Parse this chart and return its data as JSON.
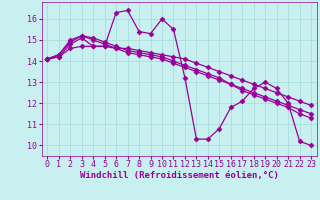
{
  "background_color": "#c8f0f0",
  "grid_color": "#aadddd",
  "line_color": "#990099",
  "marker": "D",
  "markersize": 2.5,
  "linewidth": 0.9,
  "xlim": [
    -0.5,
    23.5
  ],
  "ylim": [
    9.5,
    16.8
  ],
  "yticks": [
    10,
    11,
    12,
    13,
    14,
    15,
    16
  ],
  "xticks": [
    0,
    1,
    2,
    3,
    4,
    5,
    6,
    7,
    8,
    9,
    10,
    11,
    12,
    13,
    14,
    15,
    16,
    17,
    18,
    19,
    20,
    21,
    22,
    23
  ],
  "xlabel": "Windchill (Refroidissement éolien,°C)",
  "xlabel_fontsize": 6.5,
  "tick_fontsize": 6.0,
  "series": [
    [
      14.1,
      14.2,
      14.8,
      15.1,
      14.7,
      14.7,
      16.3,
      16.4,
      15.4,
      15.3,
      16.0,
      15.5,
      13.2,
      10.3,
      10.3,
      10.8,
      11.8,
      12.1,
      12.7,
      13.0,
      12.7,
      12.0,
      10.2,
      10.0
    ],
    [
      14.1,
      14.2,
      14.6,
      14.7,
      14.7,
      14.7,
      14.6,
      14.6,
      14.5,
      14.4,
      14.3,
      14.2,
      14.1,
      13.9,
      13.7,
      13.5,
      13.3,
      13.1,
      12.9,
      12.7,
      12.5,
      12.3,
      12.1,
      11.9
    ],
    [
      14.1,
      14.3,
      15.0,
      15.2,
      15.1,
      14.9,
      14.7,
      14.5,
      14.4,
      14.3,
      14.2,
      14.0,
      13.8,
      13.6,
      13.4,
      13.2,
      12.9,
      12.6,
      12.4,
      12.2,
      12.0,
      11.8,
      11.5,
      11.3
    ],
    [
      14.1,
      14.3,
      14.9,
      15.2,
      15.0,
      14.8,
      14.6,
      14.4,
      14.3,
      14.2,
      14.1,
      13.9,
      13.7,
      13.5,
      13.3,
      13.1,
      12.9,
      12.7,
      12.5,
      12.3,
      12.1,
      11.9,
      11.7,
      11.5
    ]
  ]
}
